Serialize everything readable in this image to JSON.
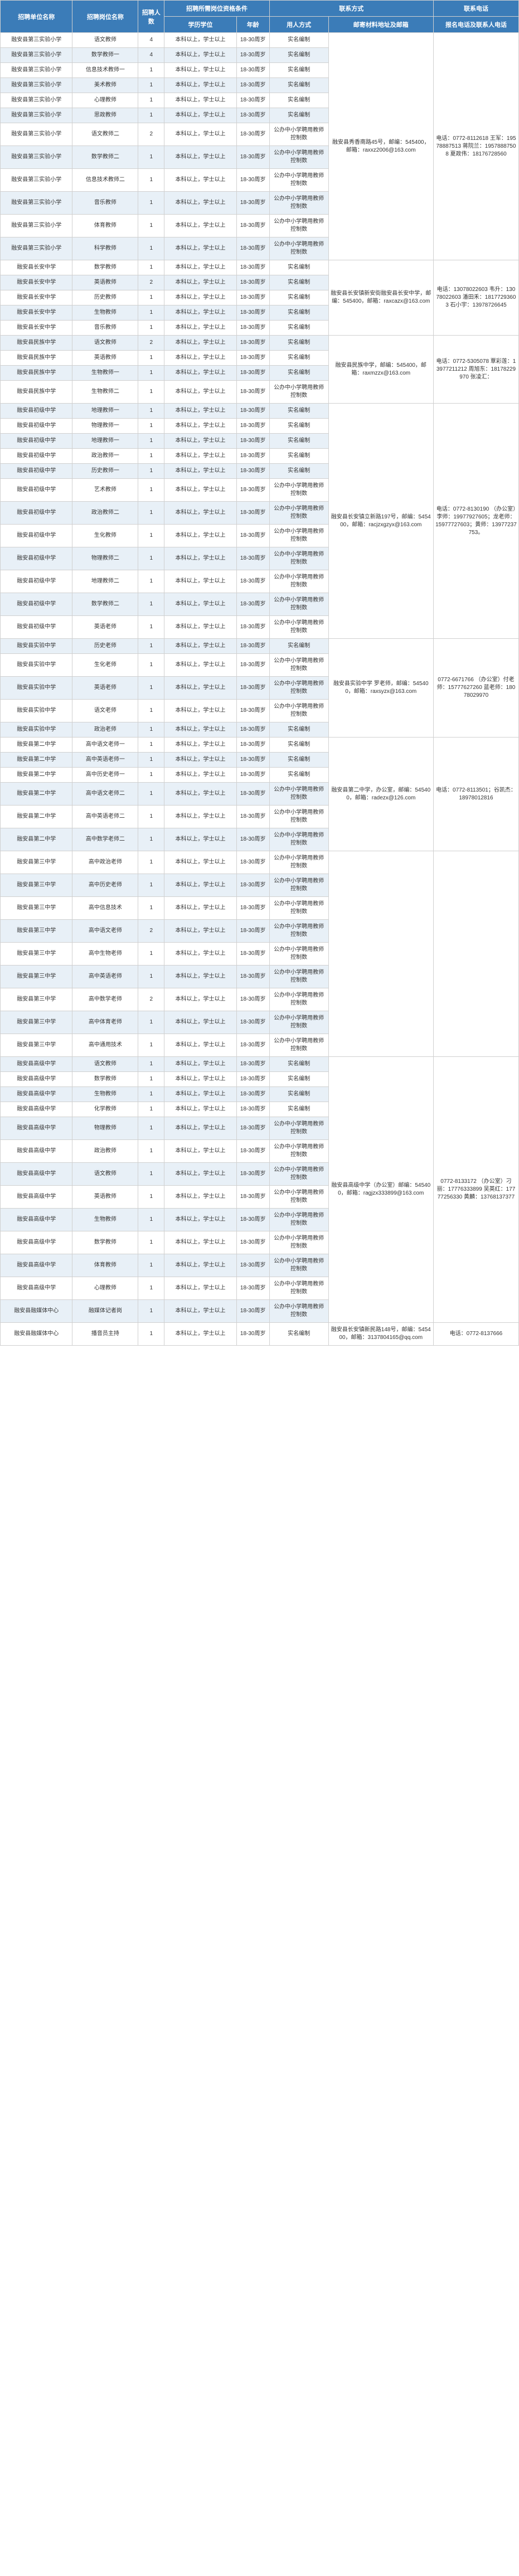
{
  "headers": {
    "school": "招聘单位名称",
    "position": "招聘岗位名称",
    "count": "招聘人数",
    "qualGroup": "招聘所需岗位资格条件",
    "edu": "学历学位",
    "age": "年龄",
    "contactGroup": "联系方式",
    "hireType": "用人方式",
    "emailAddr": "邮寄材料地址及邮箱",
    "phoneGroup": "联系电话",
    "phone": "报名电话及联系人电话"
  },
  "eduText": "本科以上，学士以上",
  "ageText": "18-30周岁",
  "hireTypes": {
    "shiming": "实名编制",
    "gongban": "公办中小学聘用教师控制数"
  },
  "schools": {
    "s1": "融安县第三实验小学",
    "s2": "融安县长安中学",
    "s3": "融安县民族中学",
    "s4": "融安县初级中学",
    "s5": "融安县实验中学",
    "s6": "融安县第二中学",
    "s7": "融安县第三中学",
    "s8": "融安县高级中学",
    "s9": "融安县融媒体中心",
    "s10": "融安县融媒体中心"
  },
  "contacts": {
    "g1": {
      "addr": "融安县秀香南路45号，邮编：545400，邮箱：raxxz2006@163.com",
      "phone": "电话：0772-8112618 王军：19578887513 蒋院兰：19578887508 夏政伟：18176728560"
    },
    "g2": {
      "addr": "融安县长安镇新安街融安县长安中学，邮编：545400，邮箱：raxcazx@163.com",
      "phone": "电话：13078022603 韦升：13078022603 潘田禾：18177293603 石小宇：13978726645"
    },
    "g3": {
      "addr": "融安县民族中学，邮编：545400，邮箱：raxmzzx@163.com",
      "phone": "电话：0772-5305078 覃彩莲：13977211212 周旭东：18178229970 张凌汇："
    },
    "g4": {
      "addr": "融安县长安镇立新路197号，邮编：545400，邮箱：racjzxgzyx@163.com",
      "phone": "电话：0772-8130190 （办公室）李师：19977927605；龙老师：15977727603；黄师：13977237753。"
    },
    "g5": {
      "addr": "融安县实验中学 罗老师，邮编：545400，邮箱：raxsyzx@163.com",
      "phone": "0772-6671766 （办公室）付老师：15777627260 蓝老师：18078029970"
    },
    "g6": {
      "addr": "融安县第二中学，办公室，邮编：545400，邮箱：radezx@126.com",
      "phone": "电话：0772-8113501；谷凯杰：18978012816"
    },
    "g7": {
      "addr": "",
      "phone": ""
    },
    "g8": {
      "addr": "融安县高级中学（办公室）邮编：545400，邮箱：ragjzx333899@163.com",
      "phone": "0772-8133172 （办公室）刁丽：17776333899 吴英红：17777256330 黄麟：13768137377"
    },
    "g9": {
      "addr": "融安县长安镇新民路148号，邮编：545400，邮箱：3137804165@qq.com",
      "phone": "电话：0772-8137666"
    }
  },
  "rows": [
    {
      "sc": "s1",
      "pos": "语文教师",
      "n": 4,
      "hr": "shiming",
      "g": "g1",
      "gspan": 12,
      "alt": false
    },
    {
      "sc": "s1",
      "pos": "数学教师一",
      "n": 4,
      "hr": "shiming",
      "alt": true
    },
    {
      "sc": "s1",
      "pos": "信息技术教师一",
      "n": 1,
      "hr": "shiming",
      "alt": false
    },
    {
      "sc": "s1",
      "pos": "美术教师",
      "n": 1,
      "hr": "shiming",
      "alt": true
    },
    {
      "sc": "s1",
      "pos": "心理教师",
      "n": 1,
      "hr": "shiming",
      "alt": false
    },
    {
      "sc": "s1",
      "pos": "思政教师",
      "n": 1,
      "hr": "shiming",
      "alt": true
    },
    {
      "sc": "s1",
      "pos": "语文教师二",
      "n": 2,
      "hr": "gongban",
      "alt": false
    },
    {
      "sc": "s1",
      "pos": "数学教师二",
      "n": 1,
      "hr": "gongban",
      "alt": true
    },
    {
      "sc": "s1",
      "pos": "信息技术教师二",
      "n": 1,
      "hr": "gongban",
      "alt": false
    },
    {
      "sc": "s1",
      "pos": "音乐教师",
      "n": 1,
      "hr": "gongban",
      "alt": true
    },
    {
      "sc": "s1",
      "pos": "体育教师",
      "n": 1,
      "hr": "gongban",
      "alt": false
    },
    {
      "sc": "s1",
      "pos": "科学教师",
      "n": 1,
      "hr": "gongban",
      "alt": true
    },
    {
      "sc": "s2",
      "pos": "数学教师",
      "n": 1,
      "hr": "shiming",
      "g": "g2",
      "gspan": 5,
      "alt": false
    },
    {
      "sc": "s2",
      "pos": "英语教师",
      "n": 2,
      "hr": "shiming",
      "alt": true
    },
    {
      "sc": "s2",
      "pos": "历史教师",
      "n": 1,
      "hr": "shiming",
      "alt": false
    },
    {
      "sc": "s2",
      "pos": "生物教师",
      "n": 1,
      "hr": "shiming",
      "alt": true
    },
    {
      "sc": "s2",
      "pos": "音乐教师",
      "n": 1,
      "hr": "shiming",
      "alt": false
    },
    {
      "sc": "s3",
      "pos": "语文教师",
      "n": 2,
      "hr": "shiming",
      "g": "g3",
      "gspan": 4,
      "alt": true
    },
    {
      "sc": "s3",
      "pos": "英语教师",
      "n": 1,
      "hr": "shiming",
      "alt": false
    },
    {
      "sc": "s3",
      "pos": "生物教师一",
      "n": 1,
      "hr": "shiming",
      "alt": true
    },
    {
      "sc": "s3",
      "pos": "生物教师二",
      "n": 1,
      "hr": "gongban",
      "alt": false
    },
    {
      "sc": "s4",
      "pos": "地理教师一",
      "n": 1,
      "hr": "shiming",
      "g": "g4",
      "gspan": 12,
      "alt": true
    },
    {
      "sc": "s4",
      "pos": "物理教师一",
      "n": 1,
      "hr": "shiming",
      "alt": false
    },
    {
      "sc": "s4",
      "pos": "地理教师一",
      "n": 1,
      "hr": "shiming",
      "alt": true
    },
    {
      "sc": "s4",
      "pos": "政治教师一",
      "n": 1,
      "hr": "shiming",
      "alt": false
    },
    {
      "sc": "s4",
      "pos": "历史教师一",
      "n": 1,
      "hr": "shiming",
      "alt": true
    },
    {
      "sc": "s4",
      "pos": "艺术教师",
      "n": 1,
      "hr": "gongban",
      "alt": false
    },
    {
      "sc": "s4",
      "pos": "政治教师二",
      "n": 1,
      "hr": "gongban",
      "alt": true
    },
    {
      "sc": "s4",
      "pos": "生化教师",
      "n": 1,
      "hr": "gongban",
      "alt": false
    },
    {
      "sc": "s4",
      "pos": "物理教师二",
      "n": 1,
      "hr": "gongban",
      "alt": true
    },
    {
      "sc": "s4",
      "pos": "地理教师二",
      "n": 1,
      "hr": "gongban",
      "alt": false
    },
    {
      "sc": "s4",
      "pos": "数学教师二",
      "n": 1,
      "hr": "gongban",
      "alt": true
    },
    {
      "sc": "s4",
      "pos": "英语老师",
      "n": 1,
      "hr": "gongban",
      "alt": false
    },
    {
      "sc": "s5",
      "pos": "历史老师",
      "n": 1,
      "hr": "shiming",
      "g": "g5",
      "gspan": 5,
      "alt": true
    },
    {
      "sc": "s5",
      "pos": "生化老师",
      "n": 1,
      "hr": "gongban",
      "alt": false
    },
    {
      "sc": "s5",
      "pos": "英语老师",
      "n": 1,
      "hr": "gongban",
      "alt": true
    },
    {
      "sc": "s5",
      "pos": "语文老师",
      "n": 1,
      "hr": "gongban",
      "alt": false
    },
    {
      "sc": "s5",
      "pos": "政治老师",
      "n": 1,
      "hr": "shiming",
      "alt": true
    },
    {
      "sc": "s6",
      "pos": "高中语文老师一",
      "n": 1,
      "hr": "shiming",
      "g": "g6",
      "gspan": 6,
      "alt": false
    },
    {
      "sc": "s6",
      "pos": "高中英语老师一",
      "n": 1,
      "hr": "shiming",
      "alt": true
    },
    {
      "sc": "s6",
      "pos": "高中历史老师一",
      "n": 1,
      "hr": "shiming",
      "alt": false
    },
    {
      "sc": "s6",
      "pos": "高中语文老师二",
      "n": 1,
      "hr": "gongban",
      "alt": true
    },
    {
      "sc": "s6",
      "pos": "高中英语老师二",
      "n": 1,
      "hr": "gongban",
      "alt": false
    },
    {
      "sc": "s6",
      "pos": "高中数学老师二",
      "n": 1,
      "hr": "gongban",
      "alt": true
    },
    {
      "sc": "s7",
      "pos": "高中政治老师",
      "n": 1,
      "hr": "gongban",
      "g": "g7",
      "gspan": 9,
      "alt": false
    },
    {
      "sc": "s7",
      "pos": "高中历史老师",
      "n": 1,
      "hr": "gongban",
      "alt": true
    },
    {
      "sc": "s7",
      "pos": "高中信息技术",
      "n": 1,
      "hr": "gongban",
      "alt": false
    },
    {
      "sc": "s7",
      "pos": "高中语文老师",
      "n": 2,
      "hr": "gongban",
      "alt": true
    },
    {
      "sc": "s7",
      "pos": "高中生物老师",
      "n": 1,
      "hr": "gongban",
      "alt": false
    },
    {
      "sc": "s7",
      "pos": "高中英语老师",
      "n": 1,
      "hr": "gongban",
      "alt": true
    },
    {
      "sc": "s7",
      "pos": "高中数学老师",
      "n": 2,
      "hr": "gongban",
      "alt": false
    },
    {
      "sc": "s7",
      "pos": "高中体育老师",
      "n": 1,
      "hr": "gongban",
      "alt": true
    },
    {
      "sc": "s7",
      "pos": "高中通用技术",
      "n": 1,
      "hr": "gongban",
      "alt": false
    },
    {
      "sc": "s8",
      "pos": "语文教师",
      "n": 1,
      "hr": "shiming",
      "g": "g8",
      "gspan": 13,
      "alt": true
    },
    {
      "sc": "s8",
      "pos": "数学教师",
      "n": 1,
      "hr": "shiming",
      "alt": false
    },
    {
      "sc": "s8",
      "pos": "生物教师",
      "n": 1,
      "hr": "shiming",
      "alt": true
    },
    {
      "sc": "s8",
      "pos": "化学教师",
      "n": 1,
      "hr": "shiming",
      "alt": false
    },
    {
      "sc": "s8",
      "pos": "物理教师",
      "n": 1,
      "hr": "gongban",
      "alt": true
    },
    {
      "sc": "s8",
      "pos": "政治教师",
      "n": 1,
      "hr": "gongban",
      "alt": false
    },
    {
      "sc": "s8",
      "pos": "语文教师",
      "n": 1,
      "hr": "gongban",
      "alt": true
    },
    {
      "sc": "s8",
      "pos": "英语教师",
      "n": 1,
      "hr": "gongban",
      "alt": false
    },
    {
      "sc": "s8",
      "pos": "生物教师",
      "n": 1,
      "hr": "gongban",
      "alt": true
    },
    {
      "sc": "s8",
      "pos": "数学教师",
      "n": 1,
      "hr": "gongban",
      "alt": false
    },
    {
      "sc": "s8",
      "pos": "体育教师",
      "n": 1,
      "hr": "gongban",
      "alt": true
    },
    {
      "sc": "s8",
      "pos": "心理教师",
      "n": 1,
      "hr": "gongban",
      "alt": false
    },
    {
      "sc": "s9",
      "pos": "融媒体记者岗",
      "n": 1,
      "hr": "gongban",
      "alt": true
    },
    {
      "sc": "s10",
      "pos": "播音员主持",
      "n": 1,
      "hr": "shiming",
      "g": "g9",
      "gspan": 1,
      "alt": false
    }
  ]
}
